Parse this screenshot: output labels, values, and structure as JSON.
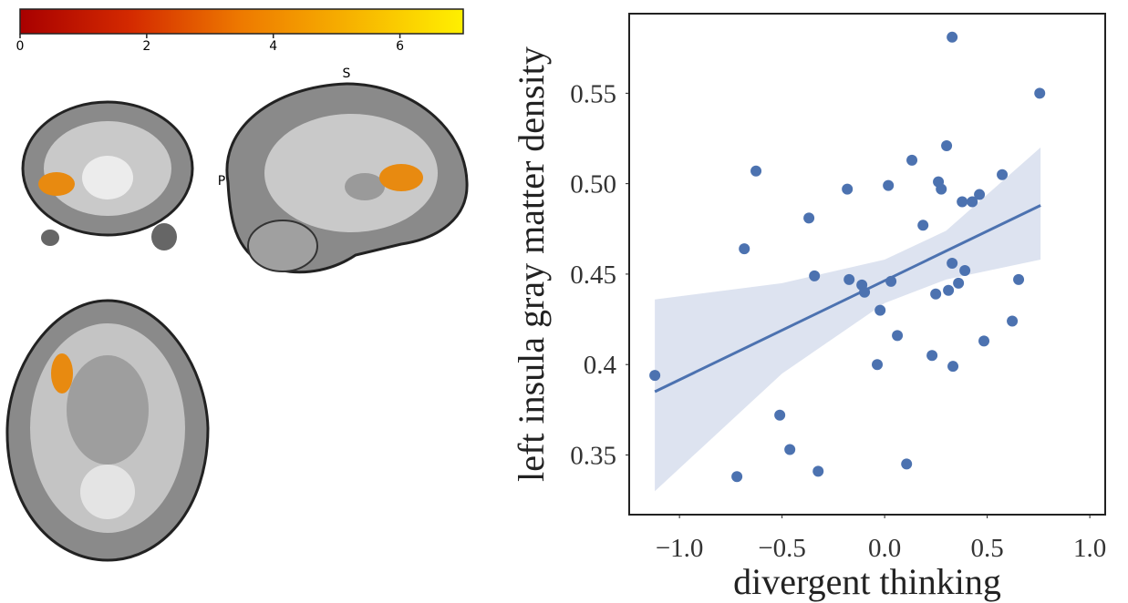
{
  "chart_data": [
    {
      "type": "colorbar",
      "colormap": [
        "#a80000",
        "#d42a00",
        "#ee7a00",
        "#f7b300",
        "#fff000"
      ],
      "xlim": [
        0,
        7
      ],
      "xticks": [
        0,
        2,
        4,
        6
      ]
    },
    {
      "type": "scatter",
      "xlabel": "divergent thinking",
      "ylabel": "left insula gray matter density",
      "xlim": [
        -1.245,
        1.075
      ],
      "ylim": [
        0.317,
        0.594
      ],
      "xticks": [
        {
          "value": -1.0,
          "label": "−1.0"
        },
        {
          "value": -0.5,
          "label": "−0.5"
        },
        {
          "value": 0.0,
          "label": "0.0"
        },
        0.5,
        {
          "value": 1.0,
          "label": "1.0"
        }
      ],
      "yticks": [
        0.35,
        0.4,
        {
          "value": 0.45,
          "label": "0.45"
        },
        {
          "value": 0.5,
          "label": "0.50"
        },
        0.55
      ],
      "color": "#4c72b0",
      "band_color": "#dde3f0",
      "points": {
        "x": [
          -1.12,
          -0.72,
          -0.684,
          -0.627,
          -0.511,
          -0.462,
          -0.369,
          -0.342,
          -0.324,
          -0.182,
          -0.173,
          -0.111,
          -0.098,
          -0.022,
          -0.036,
          0.018,
          0.031,
          0.062,
          0.107,
          0.133,
          0.187,
          0.231,
          0.249,
          0.262,
          0.276,
          0.302,
          0.311,
          0.329,
          0.333,
          0.329,
          0.36,
          0.378,
          0.391,
          0.427,
          0.462,
          0.484,
          0.573,
          0.622,
          0.653,
          0.756
        ],
        "y": [
          0.394,
          0.338,
          0.464,
          0.507,
          0.372,
          0.353,
          0.481,
          0.449,
          0.341,
          0.497,
          0.447,
          0.444,
          0.44,
          0.43,
          0.4,
          0.499,
          0.446,
          0.416,
          0.345,
          0.513,
          0.477,
          0.405,
          0.439,
          0.501,
          0.497,
          0.521,
          0.441,
          0.456,
          0.399,
          0.581,
          0.445,
          0.49,
          0.452,
          0.49,
          0.494,
          0.413,
          0.505,
          0.424,
          0.447,
          0.55
        ]
      },
      "fit": {
        "x": [
          -1.12,
          0.76
        ],
        "y": [
          0.385,
          0.488
        ]
      },
      "band": {
        "x": [
          -1.12,
          -0.5,
          0,
          0.3,
          0.76
        ],
        "upper": [
          0.436,
          0.445,
          0.458,
          0.474,
          0.52
        ],
        "lower": [
          0.33,
          0.395,
          0.434,
          0.447,
          0.458
        ]
      }
    }
  ],
  "brain_views": {
    "labels": [
      "S",
      "P"
    ]
  }
}
